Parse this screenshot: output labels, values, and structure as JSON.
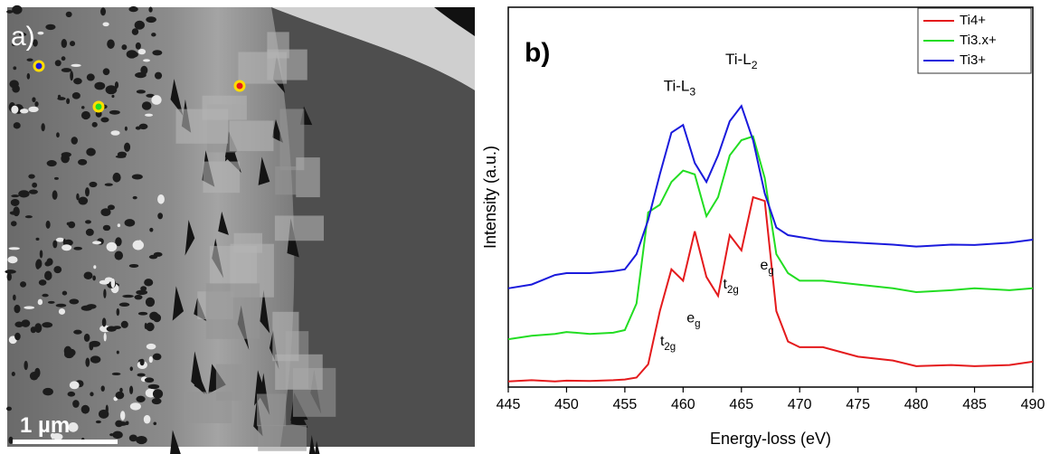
{
  "image_panel": {
    "label": "a)",
    "scale_bar": "1 µm"
  },
  "chart_data": {
    "type": "line",
    "panel_label": "b)",
    "x_label": "Energy-loss (eV)",
    "y_label": "Intensity (a.u.)",
    "x": [
      445,
      447,
      449,
      450,
      452,
      454,
      455,
      456,
      457,
      458,
      459,
      460,
      461,
      462,
      463,
      464,
      465,
      466,
      467,
      468,
      469,
      470,
      472,
      475,
      478,
      480,
      483,
      485,
      488,
      490
    ],
    "series": [
      {
        "name": "Ti4+",
        "color": "#e41a1c",
        "values": [
          1.5,
          1.8,
          1.5,
          1.7,
          1.6,
          1.8,
          2,
          2.5,
          6,
          20,
          31,
          28,
          41,
          29,
          24,
          40,
          36,
          50,
          49,
          20,
          12,
          10.5,
          10.5,
          8,
          7,
          5.5,
          5.8,
          5.5,
          5.8,
          6.7
        ]
      },
      {
        "name": "Ti3.x+",
        "color": "#22dd22",
        "values": [
          12.6,
          13.5,
          14,
          14.5,
          14,
          14.3,
          15,
          22,
          46,
          48,
          54,
          57,
          56,
          45,
          50,
          61,
          65,
          66,
          55,
          35,
          30,
          28,
          28,
          27,
          26,
          25,
          25.5,
          26,
          25.5,
          26
        ]
      },
      {
        "name": "Ti3+",
        "color": "#1a1adc",
        "values": [
          26,
          27,
          29.5,
          30,
          30,
          30.5,
          31,
          35,
          44,
          56,
          67,
          69,
          59,
          54,
          61,
          70,
          74,
          65,
          51,
          42,
          40,
          39.5,
          38.5,
          38,
          37.5,
          37,
          37.5,
          37.4,
          38,
          38.8
        ]
      }
    ],
    "annotations": [
      {
        "text": "Ti-L",
        "sub": "3"
      },
      {
        "text": "Ti-L",
        "sub": "2"
      },
      {
        "text": "t",
        "sub": "2g"
      },
      {
        "text": "e",
        "sub": "g"
      },
      {
        "text": "t",
        "sub": "2g"
      },
      {
        "text": "e",
        "sub": "g"
      }
    ],
    "xlim": [
      445,
      490
    ],
    "ylim": [
      0,
      100
    ],
    "xticks": [
      445,
      450,
      455,
      460,
      465,
      470,
      475,
      480,
      485,
      490
    ],
    "legend": "upper right"
  }
}
